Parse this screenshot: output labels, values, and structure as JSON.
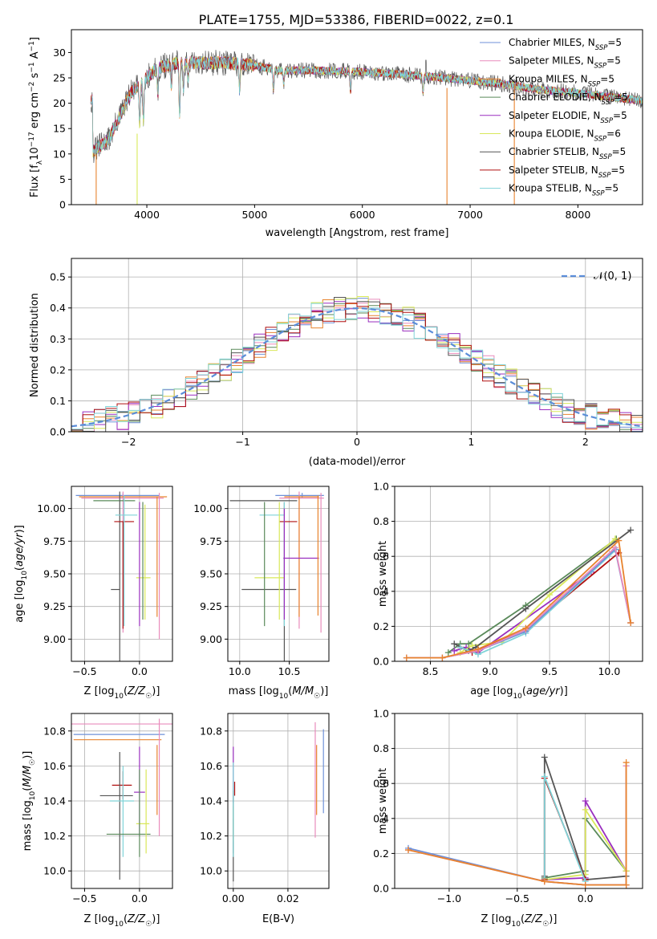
{
  "title": "PLATE=1755, MJD=53386, FIBERID=0022, z=0.1",
  "colors": {
    "Chabrier MILES": "#6e90d8",
    "Salpeter MILES": "#e98cbc",
    "Kroupa MILES": "#e8832e",
    "Chabrier ELODIE": "#5a8a5a",
    "Salpeter ELODIE": "#9a2fbf",
    "Kroupa ELODIE": "#d9e85a",
    "Chabrier STELIB": "#555555",
    "Salpeter STELIB": "#b01010",
    "Kroupa STELIB": "#7fd3d8"
  },
  "chart_data": [
    {
      "type": "line",
      "xlabel": "wavelength [Angstrom, rest frame]",
      "ylabel": "Flux [fλ10⁻¹⁷ erg cm⁻² s⁻¹ A⁻¹]",
      "xlim": [
        3300,
        8600
      ],
      "ylim": [
        0,
        34.5
      ],
      "xticks": [
        4000,
        5000,
        6000,
        7000,
        8000
      ],
      "yticks": [
        0,
        5,
        10,
        15,
        20,
        25,
        30
      ],
      "grid": false,
      "legend_position": "top-right",
      "legend": [
        {
          "label": "Chabrier MILES, N",
          "sub": "SSP",
          "tail": "=5"
        },
        {
          "label": "Salpeter MILES, N",
          "sub": "SSP",
          "tail": "=5"
        },
        {
          "label": "Kroupa MILES, N",
          "sub": "SSP",
          "tail": "=5"
        },
        {
          "label": "Chabrier ELODIE, N",
          "sub": "SSP",
          "tail": "=5"
        },
        {
          "label": "Salpeter ELODIE, N",
          "sub": "SSP",
          "tail": "=5"
        },
        {
          "label": "Kroupa ELODIE, N",
          "sub": "SSP",
          "tail": "=6"
        },
        {
          "label": "Chabrier STELIB, N",
          "sub": "SSP",
          "tail": "=5"
        },
        {
          "label": "Salpeter STELIB, N",
          "sub": "SSP",
          "tail": "=5"
        },
        {
          "label": "Kroupa STELIB, N",
          "sub": "SSP",
          "tail": "=5"
        }
      ],
      "continuum": [
        [
          3500,
          10.5
        ],
        [
          3650,
          13
        ],
        [
          3850,
          22
        ],
        [
          4000,
          25
        ],
        [
          4100,
          27
        ],
        [
          4300,
          28
        ],
        [
          4500,
          28
        ],
        [
          4700,
          28
        ],
        [
          5000,
          27.5
        ],
        [
          5200,
          26.5
        ],
        [
          5500,
          26.5
        ],
        [
          6000,
          26.2
        ],
        [
          6500,
          25.5
        ],
        [
          7000,
          24.5
        ],
        [
          7400,
          23.5
        ],
        [
          7600,
          22.8
        ],
        [
          8000,
          22
        ],
        [
          8600,
          20.5
        ]
      ],
      "absorption_dips": [
        [
          3934,
          8
        ],
        [
          3969,
          8
        ],
        [
          4102,
          5
        ],
        [
          4227,
          4
        ],
        [
          4304,
          10
        ],
        [
          4340,
          5
        ],
        [
          4383,
          3
        ],
        [
          4861,
          5
        ],
        [
          5175,
          4
        ],
        [
          5270,
          2.5
        ],
        [
          5890,
          4
        ],
        [
          6563,
          3
        ]
      ],
      "drop_lines": [
        {
          "x": 3530,
          "from": 0,
          "to": 10
        },
        {
          "x": 3910,
          "from": 0,
          "to": 14
        },
        {
          "x": 6785,
          "from": 0,
          "to": 23
        },
        {
          "x": 7410,
          "from": 0,
          "to": 23
        }
      ],
      "emission_spike": {
        "x": 6590,
        "peak": 28.5
      }
    },
    {
      "type": "histogram",
      "xlabel": "(data-model)/error",
      "ylabel": "Normed distribution",
      "xlim": [
        -2.5,
        2.5
      ],
      "ylim": [
        0,
        0.56
      ],
      "xticks": [
        -2,
        -1,
        0,
        1,
        2
      ],
      "yticks": [
        0.0,
        0.1,
        0.2,
        0.3,
        0.4,
        0.5
      ],
      "grid": true,
      "bin_width": 0.1,
      "reference": {
        "label": "𝒩(0, 1)",
        "mu": 0,
        "sigma": 1,
        "style": "dashed"
      },
      "legend_position": "top-right"
    },
    {
      "type": "scatter",
      "xlabel": "Z [log₁₀(Z/Z☉)]",
      "ylabel": "age  [log₁₀(age/yr)]",
      "xlim": [
        -0.62,
        0.3
      ],
      "ylim": [
        8.83,
        10.17
      ],
      "xticks": [
        -0.5,
        0.0
      ],
      "yticks": [
        9.0,
        9.25,
        9.5,
        9.75,
        10.0
      ],
      "grid": true,
      "points": [
        {
          "model": "Chabrier MILES",
          "x": -0.15,
          "xerr": [
            0.43,
            0.33
          ],
          "y": 10.1,
          "yerr": [
            0.02,
            0.02
          ]
        },
        {
          "model": "Salpeter MILES",
          "x": -0.15,
          "xerr": [
            0.38,
            0.37
          ],
          "y": 10.08,
          "yerr": [
            1.03,
            0.05
          ]
        },
        {
          "model": "Kroupa MILES",
          "x": -0.05,
          "xerr": [
            0.5,
            0.3
          ],
          "y": 10.09,
          "yerr": [
            0.0,
            0.0
          ]
        },
        {
          "model": "Chabrier ELODIE",
          "x": -0.22,
          "xerr": [
            0.2,
            0.18
          ],
          "y": 10.06,
          "yerr": [
            0.0,
            0.0
          ]
        },
        {
          "model": "Salpeter ELODIE",
          "x": 0.0,
          "xerr": [
            0.0,
            0.0
          ],
          "y": 9.62,
          "yerr": [
            0.0,
            0.0
          ]
        },
        {
          "model": "Kroupa ELODIE",
          "x": 0.02,
          "xerr": [
            0.05,
            0.08
          ],
          "y": 9.47,
          "yerr": [
            0.0,
            0.0
          ]
        },
        {
          "model": "Chabrier STELIB",
          "x": -0.18,
          "xerr": [
            0.08,
            0.0
          ],
          "y": 9.38,
          "yerr": [
            0.55,
            0.75
          ]
        },
        {
          "model": "Salpeter STELIB",
          "x": -0.15,
          "xerr": [
            0.08,
            0.1
          ],
          "y": 9.9,
          "yerr": [
            0.82,
            0.0
          ]
        },
        {
          "model": "Kroupa STELIB",
          "x": -0.12,
          "xerr": [
            0.1,
            0.1
          ],
          "y": 9.95,
          "yerr": [
            0.0,
            0.0
          ]
        }
      ]
    },
    {
      "type": "scatter",
      "xlabel": "mass [log₁₀(M/M☉)]",
      "ylabel": "",
      "xlim": [
        9.88,
        10.9
      ],
      "ylim": [
        8.83,
        10.17
      ],
      "xticks": [
        10.0,
        10.5
      ],
      "yticks": [
        9.0,
        9.25,
        9.5,
        9.75,
        10.0
      ],
      "grid": true
    },
    {
      "type": "line",
      "xlabel": "age  [log₁₀(age/yr)]",
      "ylabel": "mass weight",
      "xlim": [
        8.2,
        10.28
      ],
      "ylim": [
        0,
        1.0
      ],
      "xticks": [
        8.5,
        9.0,
        9.5,
        10.0
      ],
      "yticks": [
        0.0,
        0.2,
        0.4,
        0.6,
        0.8,
        1.0
      ],
      "grid": true,
      "series": [
        {
          "model": "Chabrier MILES",
          "x": [
            8.3,
            8.6,
            8.9,
            9.3,
            10.05,
            10.18
          ],
          "y": [
            0.02,
            0.02,
            0.06,
            0.17,
            0.64,
            0.22
          ]
        },
        {
          "model": "Salpeter MILES",
          "x": [
            8.3,
            8.6,
            8.9,
            9.3,
            10.05,
            10.18
          ],
          "y": [
            0.02,
            0.02,
            0.06,
            0.18,
            0.65,
            0.22
          ]
        },
        {
          "model": "Kroupa MILES",
          "x": [
            8.3,
            8.6,
            8.9,
            9.3,
            10.08,
            10.18
          ],
          "y": [
            0.02,
            0.02,
            0.07,
            0.19,
            0.69,
            0.22
          ]
        },
        {
          "model": "Chabrier ELODIE",
          "x": [
            8.65,
            8.75,
            8.82,
            9.3,
            10.06
          ],
          "y": [
            0.05,
            0.1,
            0.1,
            0.32,
            0.7
          ]
        },
        {
          "model": "Salpeter ELODIE",
          "x": [
            8.7,
            8.8,
            8.9,
            9.85
          ],
          "y": [
            0.06,
            0.08,
            0.05,
            0.51
          ]
        },
        {
          "model": "Kroupa ELODIE",
          "x": [
            8.75,
            8.85,
            9.1,
            9.5,
            10.05
          ],
          "y": [
            0.05,
            0.09,
            0.11,
            0.38,
            0.7
          ]
        },
        {
          "model": "Chabrier STELIB",
          "x": [
            8.7,
            8.82,
            8.88,
            9.3,
            10.18
          ],
          "y": [
            0.1,
            0.06,
            0.08,
            0.3,
            0.75
          ]
        },
        {
          "model": "Salpeter STELIB",
          "x": [
            8.75,
            8.85,
            9.3,
            10.08
          ],
          "y": [
            0.08,
            0.05,
            0.18,
            0.62
          ]
        },
        {
          "model": "Kroupa STELIB",
          "x": [
            8.75,
            8.9,
            9.3,
            10.06
          ],
          "y": [
            0.08,
            0.04,
            0.16,
            0.64
          ]
        }
      ]
    },
    {
      "type": "scatter",
      "xlabel": "Z [log₁₀(Z/Z☉)]",
      "ylabel": "mass [log₁₀(M/M☉)]",
      "xlim": [
        -0.62,
        0.3
      ],
      "ylim": [
        9.9,
        10.9
      ],
      "xticks": [
        -0.5,
        0.0
      ],
      "yticks": [
        10.0,
        10.2,
        10.4,
        10.6,
        10.8
      ],
      "grid": true
    },
    {
      "type": "scatter",
      "xlabel": "E(B-V)",
      "ylabel": "",
      "xlim": [
        -0.002,
        0.035
      ],
      "ylim": [
        9.9,
        10.9
      ],
      "xticks": [
        0.0,
        0.02
      ],
      "yticks": [
        10.0,
        10.2,
        10.4,
        10.6,
        10.8
      ],
      "grid": true,
      "points": [
        {
          "model": "Chabrier MILES",
          "x": 0.033,
          "y": 10.57,
          "yerr": [
            0.24,
            0.24
          ]
        },
        {
          "model": "Salpeter MILES",
          "x": 0.03,
          "y": 10.52,
          "yerr": [
            0.33,
            0.33
          ]
        },
        {
          "model": "Kroupa MILES",
          "x": 0.0305,
          "y": 10.52,
          "yerr": [
            0.2,
            0.2
          ]
        },
        {
          "model": "Chabrier ELODIE",
          "x": 0.0,
          "y": 10.2,
          "yerr": [
            0.1,
            0.1
          ]
        },
        {
          "model": "Salpeter ELODIE",
          "x": 0.0,
          "y": 10.55,
          "yerr": [
            0.16,
            0.16
          ]
        },
        {
          "model": "Kroupa ELODIE",
          "x": 0.0,
          "y": 10.27,
          "yerr": [
            0.1,
            0.1
          ]
        },
        {
          "model": "Chabrier STELIB",
          "x": 0.0,
          "y": 10.2,
          "yerr": [
            0.26,
            0.26
          ]
        },
        {
          "model": "Salpeter STELIB",
          "x": 0.0005,
          "y": 10.47,
          "yerr": [
            0.04,
            0.04
          ]
        },
        {
          "model": "Kroupa STELIB",
          "x": 0.0,
          "y": 10.35,
          "yerr": [
            0.27,
            0.27
          ]
        }
      ]
    },
    {
      "type": "line",
      "xlabel": "Z [log₁₀(Z/Z☉)]",
      "ylabel": "mass weight",
      "xlim": [
        -1.4,
        0.42
      ],
      "ylim": [
        0,
        1.0
      ],
      "xticks": [
        -1.0,
        -0.5,
        0.0
      ],
      "yticks": [
        0.0,
        0.2,
        0.4,
        0.6,
        0.8,
        1.0
      ],
      "grid": true,
      "series": [
        {
          "model": "Chabrier MILES",
          "x": [
            -1.3,
            -0.3,
            0.0,
            0.3,
            0.3
          ],
          "y": [
            0.23,
            0.04,
            0.02,
            0.02,
            0.7
          ]
        },
        {
          "model": "Salpeter MILES",
          "x": [
            -1.3,
            -0.3,
            0.0,
            0.3,
            0.3
          ],
          "y": [
            0.22,
            0.04,
            0.02,
            0.02,
            0.7
          ]
        },
        {
          "model": "Kroupa MILES",
          "x": [
            -1.3,
            -0.3,
            0.0,
            0.3,
            0.3
          ],
          "y": [
            0.22,
            0.04,
            0.02,
            0.02,
            0.72
          ]
        },
        {
          "model": "Chabrier ELODIE",
          "x": [
            -0.3,
            0.0,
            0.0,
            0.3
          ],
          "y": [
            0.06,
            0.1,
            0.4,
            0.1
          ]
        },
        {
          "model": "Salpeter ELODIE",
          "x": [
            -0.3,
            0.0,
            0.0,
            0.3
          ],
          "y": [
            0.05,
            0.06,
            0.5,
            0.1
          ]
        },
        {
          "model": "Kroupa ELODIE",
          "x": [
            -0.3,
            0.0,
            0.0,
            0.3
          ],
          "y": [
            0.05,
            0.08,
            0.45,
            0.1
          ]
        },
        {
          "model": "Chabrier STELIB",
          "x": [
            -0.3,
            -0.3,
            0.0,
            0.3
          ],
          "y": [
            0.07,
            0.75,
            0.05,
            0.07
          ]
        },
        {
          "model": "Salpeter STELIB",
          "x": [
            -0.3,
            -0.3,
            0.0
          ],
          "y": [
            0.05,
            0.63,
            0.05
          ]
        },
        {
          "model": "Kroupa STELIB",
          "x": [
            -0.3,
            -0.3,
            0.0
          ],
          "y": [
            0.04,
            0.64,
            0.04
          ]
        }
      ]
    }
  ]
}
